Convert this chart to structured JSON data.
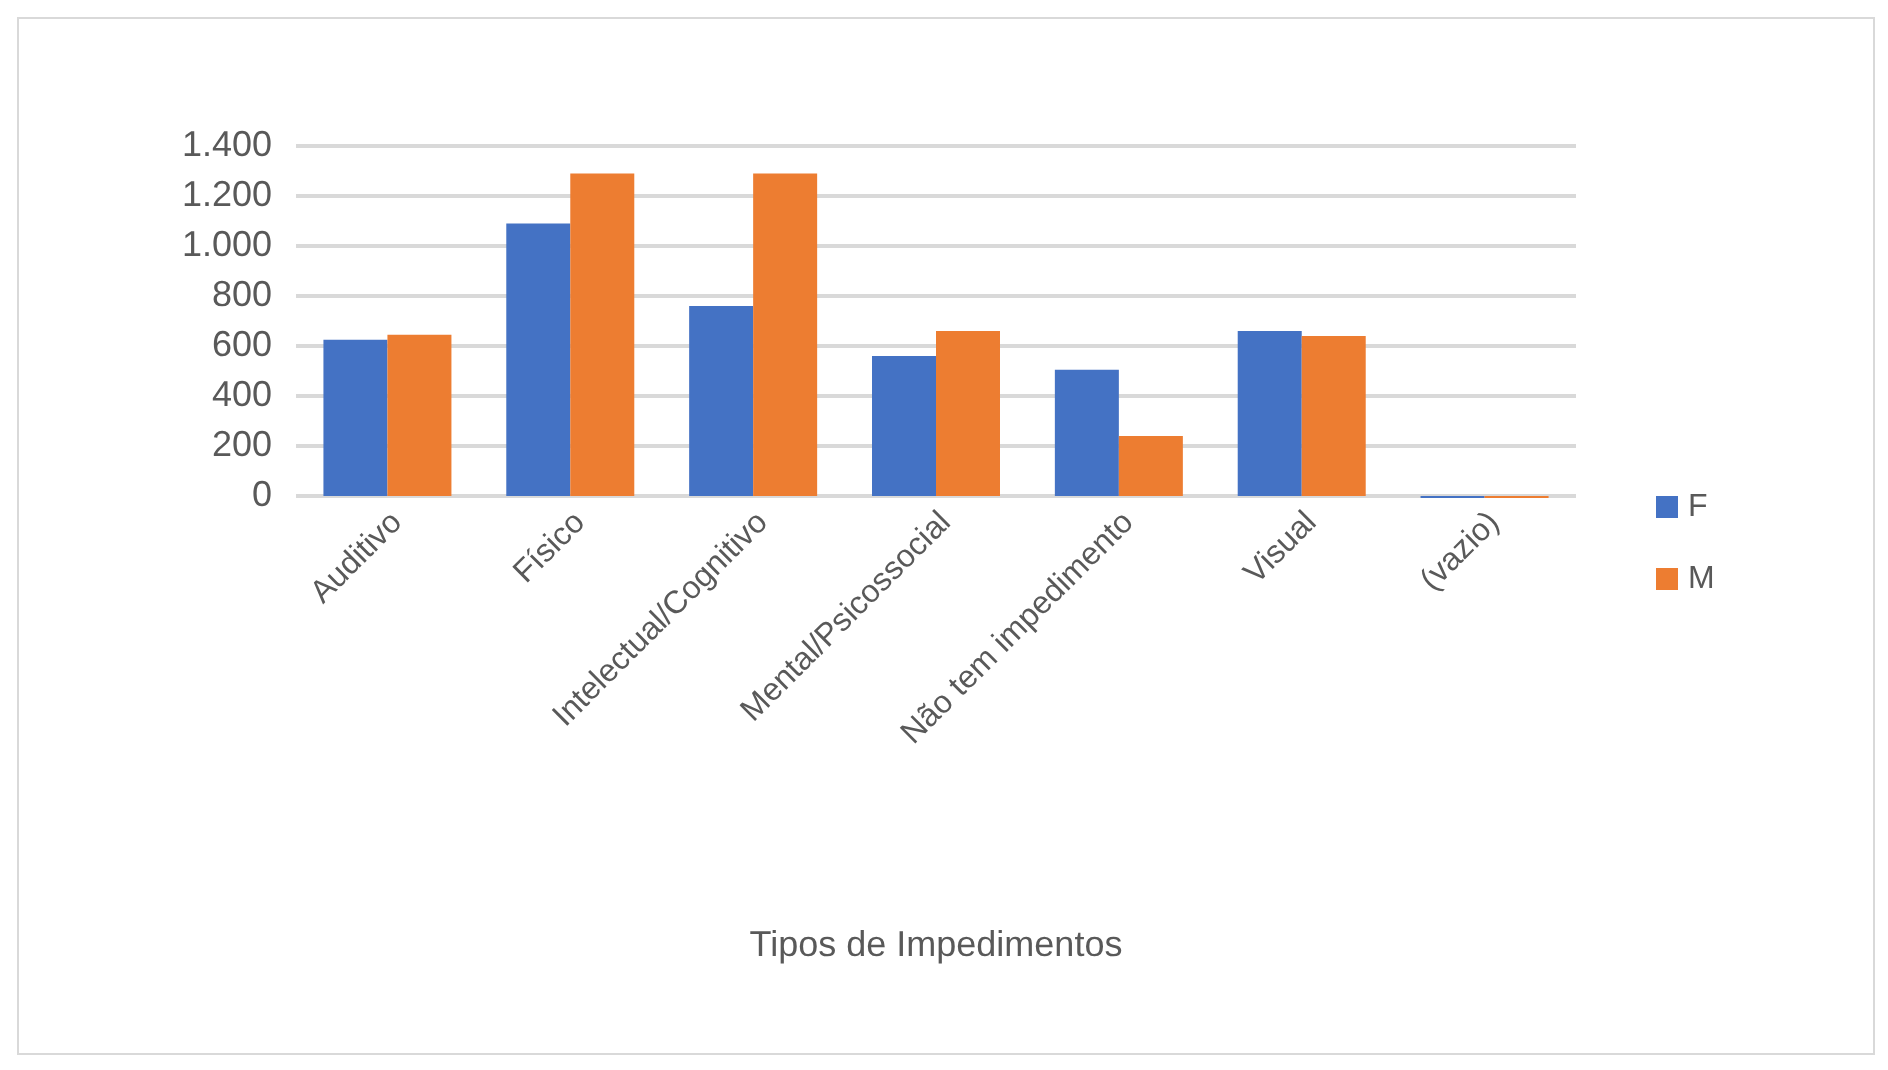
{
  "chart_data": {
    "type": "bar",
    "xlabel": "Tipos de Impedimentos",
    "categories": [
      "Auditivo",
      "Físico",
      "Intelectual/Cognitivo",
      "Mental/Psicossocial",
      "Não tem impedimento",
      "Visual",
      "(vazio)"
    ],
    "series": [
      {
        "name": "F",
        "color": "#4472c4",
        "values": [
          625,
          1090,
          760,
          560,
          505,
          660,
          0
        ]
      },
      {
        "name": "M",
        "color": "#ed7d31",
        "values": [
          645,
          1290,
          1290,
          660,
          240,
          640,
          0
        ]
      }
    ],
    "ylim": [
      0,
      1400
    ],
    "yticks": [
      0,
      200,
      400,
      600,
      800,
      {
        "value": 1000,
        "label": "1.000"
      },
      {
        "value": 1200,
        "label": "1.200"
      },
      {
        "value": 1400,
        "label": "1.400"
      }
    ],
    "grid": "y",
    "legend": "right"
  }
}
